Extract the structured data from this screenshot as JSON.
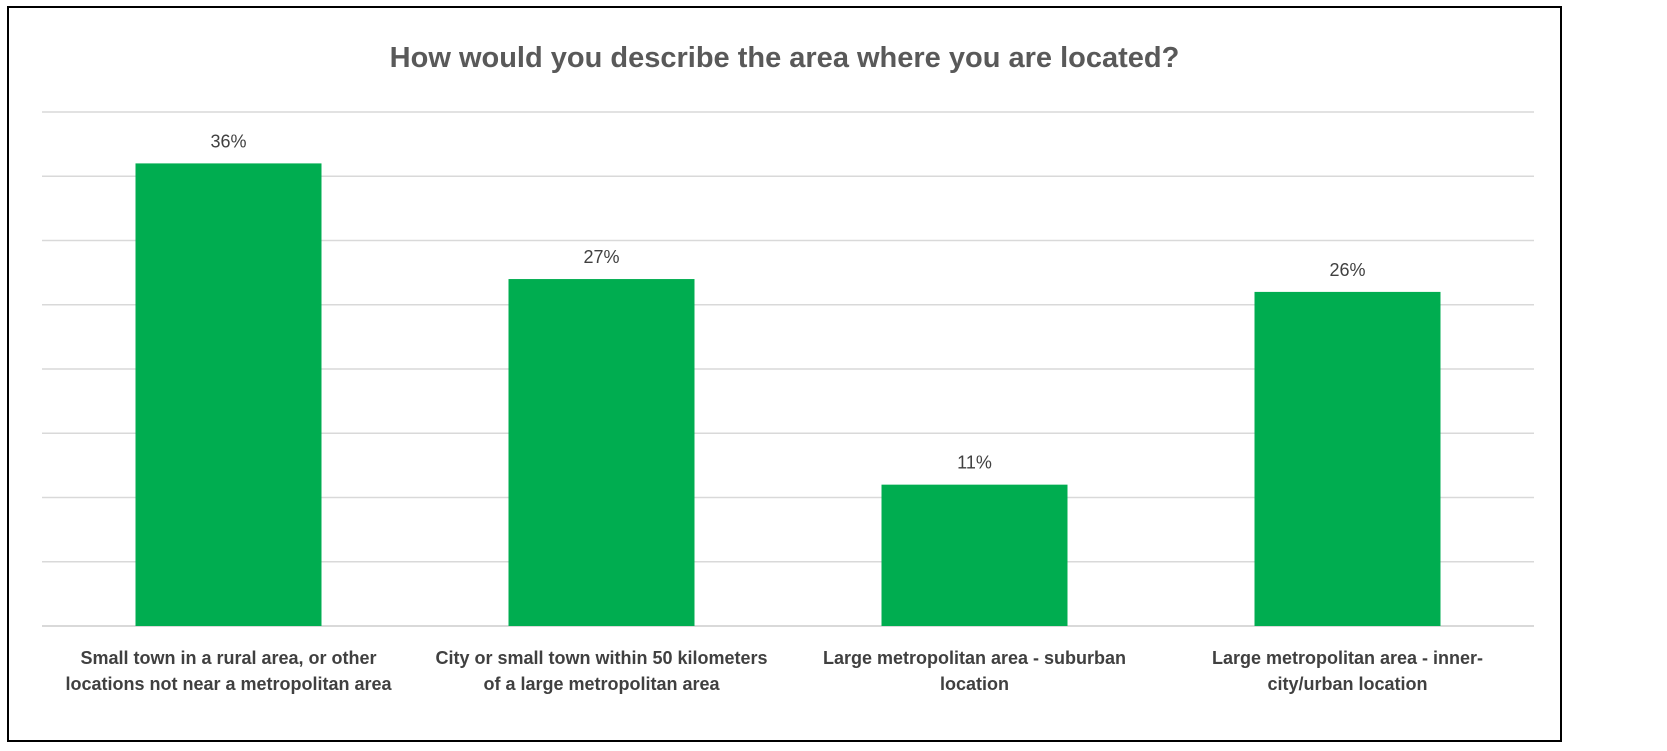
{
  "chart_data": {
    "type": "bar",
    "title": "How would you describe the area where you are located?",
    "categories": [
      [
        "Small town in a rural area, or other",
        "locations not near a metropolitan area"
      ],
      [
        "City or small town within 50 kilometers",
        "of a large metropolitan area"
      ],
      [
        "Large metropolitan area - suburban",
        "location"
      ],
      [
        "Large metropolitan area - inner-",
        "city/urban location"
      ]
    ],
    "values": [
      36,
      27,
      11,
      26
    ],
    "value_labels": [
      "36%",
      "27%",
      "11%",
      "26%"
    ],
    "ylim": [
      0,
      40
    ],
    "grid": true,
    "bar_color": "#00AD50",
    "grid_color": "#D9D9D9"
  }
}
